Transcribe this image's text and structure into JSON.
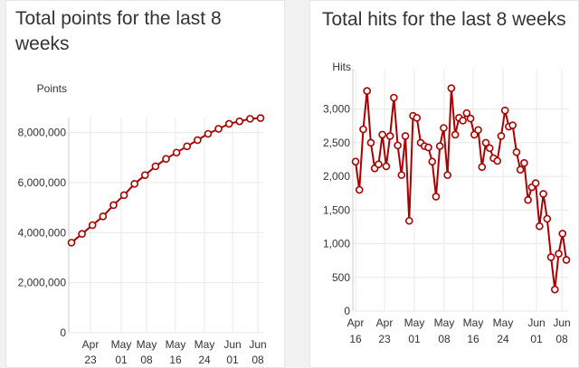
{
  "chart_data": [
    {
      "type": "line",
      "title": "Total points for the last 8 weeks",
      "ylabel": "Points",
      "xlabel": "",
      "ylim": [
        0,
        8600000
      ],
      "yticks": [
        0,
        2000000,
        4000000,
        6000000,
        8000000
      ],
      "ytick_labels": [
        "0",
        "2,000,000",
        "4,000,000",
        "6,000,000",
        "8,000,000"
      ],
      "xticks": [
        {
          "top": "Apr",
          "bottom": "23"
        },
        {
          "top": "May",
          "bottom": "01"
        },
        {
          "top": "May",
          "bottom": "08"
        },
        {
          "top": "May",
          "bottom": "16"
        },
        {
          "top": "May",
          "bottom": "24"
        },
        {
          "top": "Jun",
          "bottom": "01"
        },
        {
          "top": "Jun",
          "bottom": "08"
        }
      ],
      "series": [
        {
          "name": "Points",
          "color": "#a80000",
          "values": [
            3600000,
            3950000,
            4300000,
            4650000,
            5100000,
            5500000,
            5950000,
            6300000,
            6650000,
            6950000,
            7200000,
            7450000,
            7700000,
            7950000,
            8150000,
            8350000,
            8450000,
            8550000,
            8580000
          ]
        }
      ]
    },
    {
      "type": "line",
      "title": "Total hits for the last 8 weeks",
      "ylabel": "Hits",
      "xlabel": "",
      "ylim": [
        0,
        3600
      ],
      "yticks": [
        0,
        500,
        1000,
        1500,
        2000,
        2500,
        3000
      ],
      "ytick_labels": [
        "0",
        "500",
        "1,000",
        "1,500",
        "2,000",
        "2,500",
        "3,000"
      ],
      "xticks": [
        {
          "top": "Apr",
          "bottom": "16"
        },
        {
          "top": "Apr",
          "bottom": "23"
        },
        {
          "top": "May",
          "bottom": "01"
        },
        {
          "top": "May",
          "bottom": "08"
        },
        {
          "top": "May",
          "bottom": "16"
        },
        {
          "top": "May",
          "bottom": "24"
        },
        {
          "top": "Jun",
          "bottom": "01"
        },
        {
          "top": "Jun",
          "bottom": "08"
        }
      ],
      "series": [
        {
          "name": "Hits",
          "color": "#a80000",
          "values": [
            2220,
            1800,
            2700,
            3270,
            2500,
            2120,
            2180,
            2620,
            2150,
            2600,
            3170,
            2460,
            2020,
            2600,
            1340,
            2900,
            2870,
            2500,
            2450,
            2430,
            2220,
            1700,
            2450,
            2720,
            2020,
            3310,
            2620,
            2870,
            2830,
            2940,
            2860,
            2620,
            2690,
            2140,
            2500,
            2420,
            2270,
            2230,
            2600,
            2980,
            2740,
            2760,
            2360,
            2100,
            2200,
            1650,
            1840,
            1900,
            1260,
            1740,
            1370,
            800,
            320,
            850,
            1150,
            760
          ]
        }
      ]
    }
  ]
}
